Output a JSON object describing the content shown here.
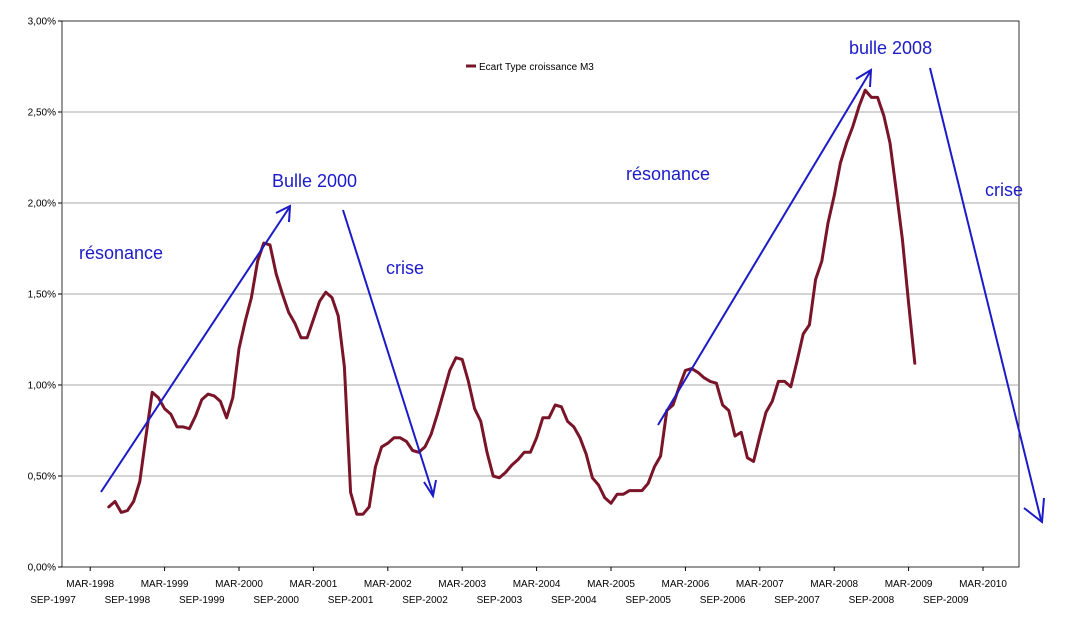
{
  "chart_data": {
    "type": "line",
    "title": "",
    "xlabel": "",
    "ylabel": "",
    "ylim": [
      0,
      3.0
    ],
    "y_ticks": [
      "0,00%",
      "0,50%",
      "1,00%",
      "1,50%",
      "2,00%",
      "2,50%",
      "3,00%"
    ],
    "x_ticks_top": [
      "MAR-1998",
      "MAR-1999",
      "MAR-2000",
      "MAR-2001",
      "MAR-2002",
      "MAR-2003",
      "MAR-2004",
      "MAR-2005",
      "MAR-2006",
      "MAR-2007",
      "MAR-2008",
      "MAR-2009",
      "MAR-2010"
    ],
    "x_ticks_bottom": [
      "SEP-1997",
      "SEP-1998",
      "SEP-1999",
      "SEP-2000",
      "SEP-2001",
      "SEP-2002",
      "SEP-2003",
      "SEP-2004",
      "SEP-2005",
      "SEP-2006",
      "SEP-2007",
      "SEP-2008",
      "SEP-2009"
    ],
    "grid": true,
    "legend_position": "top-center",
    "series": [
      {
        "name": "Ecart Type croissance M3",
        "color": "#7a1428",
        "x_unit": "months since SEP-1997",
        "points": [
          [
            9,
            0.33
          ],
          [
            10,
            0.36
          ],
          [
            11,
            0.3
          ],
          [
            12,
            0.31
          ],
          [
            13,
            0.36
          ],
          [
            14,
            0.47
          ],
          [
            15,
            0.72
          ],
          [
            16,
            0.96
          ],
          [
            17,
            0.93
          ],
          [
            18,
            0.87
          ],
          [
            19,
            0.84
          ],
          [
            20,
            0.77
          ],
          [
            21,
            0.77
          ],
          [
            22,
            0.76
          ],
          [
            23,
            0.83
          ],
          [
            24,
            0.92
          ],
          [
            25,
            0.95
          ],
          [
            26,
            0.94
          ],
          [
            27,
            0.91
          ],
          [
            28,
            0.82
          ],
          [
            29,
            0.93
          ],
          [
            30,
            1.2
          ],
          [
            31,
            1.35
          ],
          [
            32,
            1.48
          ],
          [
            33,
            1.68
          ],
          [
            34,
            1.78
          ],
          [
            35,
            1.77
          ],
          [
            36,
            1.61
          ],
          [
            37,
            1.5
          ],
          [
            38,
            1.4
          ],
          [
            39,
            1.34
          ],
          [
            40,
            1.26
          ],
          [
            41,
            1.26
          ],
          [
            42,
            1.36
          ],
          [
            43,
            1.46
          ],
          [
            44,
            1.51
          ],
          [
            45,
            1.48
          ],
          [
            46,
            1.38
          ],
          [
            47,
            1.1
          ],
          [
            48,
            0.41
          ],
          [
            49,
            0.29
          ],
          [
            50,
            0.29
          ],
          [
            51,
            0.33
          ],
          [
            52,
            0.55
          ],
          [
            53,
            0.66
          ],
          [
            54,
            0.68
          ],
          [
            55,
            0.71
          ],
          [
            56,
            0.71
          ],
          [
            57,
            0.69
          ],
          [
            58,
            0.64
          ],
          [
            59,
            0.63
          ],
          [
            60,
            0.66
          ],
          [
            61,
            0.73
          ],
          [
            62,
            0.84
          ],
          [
            63,
            0.96
          ],
          [
            64,
            1.08
          ],
          [
            65,
            1.15
          ],
          [
            66,
            1.14
          ],
          [
            67,
            1.02
          ],
          [
            68,
            0.87
          ],
          [
            69,
            0.8
          ],
          [
            70,
            0.63
          ],
          [
            71,
            0.5
          ],
          [
            72,
            0.49
          ],
          [
            73,
            0.52
          ],
          [
            74,
            0.56
          ],
          [
            75,
            0.59
          ],
          [
            76,
            0.63
          ],
          [
            77,
            0.63
          ],
          [
            78,
            0.71
          ],
          [
            79,
            0.82
          ],
          [
            80,
            0.82
          ],
          [
            81,
            0.89
          ],
          [
            82,
            0.88
          ],
          [
            83,
            0.8
          ],
          [
            84,
            0.77
          ],
          [
            85,
            0.71
          ],
          [
            86,
            0.62
          ],
          [
            87,
            0.49
          ],
          [
            88,
            0.45
          ],
          [
            89,
            0.38
          ],
          [
            90,
            0.35
          ],
          [
            91,
            0.4
          ],
          [
            92,
            0.4
          ],
          [
            93,
            0.42
          ],
          [
            94,
            0.42
          ],
          [
            95,
            0.42
          ],
          [
            96,
            0.46
          ],
          [
            97,
            0.55
          ],
          [
            98,
            0.61
          ],
          [
            99,
            0.86
          ],
          [
            100,
            0.89
          ],
          [
            101,
            0.99
          ],
          [
            102,
            1.08
          ],
          [
            103,
            1.09
          ],
          [
            104,
            1.07
          ],
          [
            105,
            1.04
          ],
          [
            106,
            1.02
          ],
          [
            107,
            1.01
          ],
          [
            108,
            0.89
          ],
          [
            109,
            0.86
          ],
          [
            110,
            0.72
          ],
          [
            111,
            0.74
          ],
          [
            112,
            0.6
          ],
          [
            113,
            0.58
          ],
          [
            114,
            0.72
          ],
          [
            115,
            0.85
          ],
          [
            116,
            0.91
          ],
          [
            117,
            1.02
          ],
          [
            118,
            1.02
          ],
          [
            119,
            0.99
          ],
          [
            120,
            1.13
          ],
          [
            121,
            1.28
          ],
          [
            122,
            1.33
          ],
          [
            123,
            1.58
          ],
          [
            124,
            1.68
          ],
          [
            125,
            1.89
          ],
          [
            126,
            2.04
          ],
          [
            127,
            2.22
          ],
          [
            128,
            2.33
          ],
          [
            129,
            2.42
          ],
          [
            130,
            2.53
          ],
          [
            131,
            2.62
          ],
          [
            132,
            2.58
          ],
          [
            133,
            2.58
          ],
          [
            134,
            2.48
          ],
          [
            135,
            2.33
          ],
          [
            136,
            2.07
          ],
          [
            137,
            1.8
          ],
          [
            138,
            1.45
          ],
          [
            139,
            1.12
          ]
        ]
      }
    ],
    "annotations": [
      {
        "text": "résonance"
      },
      {
        "text": "Bulle 2000"
      },
      {
        "text": "crise"
      },
      {
        "text": "résonance"
      },
      {
        "text": "bulle 2008"
      },
      {
        "text": "crise"
      }
    ]
  }
}
